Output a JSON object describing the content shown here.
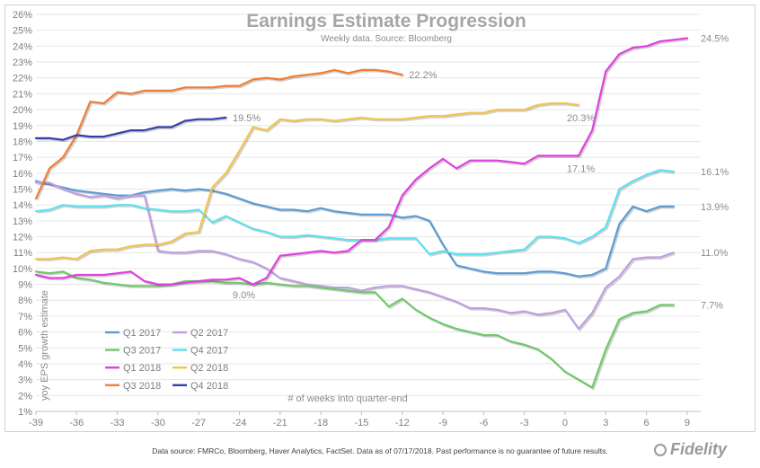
{
  "chart_data": {
    "type": "line",
    "title": "Earnings Estimate Progression",
    "subtitle": "Weekly data.  Source: Bloomberg",
    "xlabel": "# of weeks into quarter-end",
    "ylabel": "yoy EPS growth estimate",
    "xlim": [
      -39,
      10
    ],
    "ylim": [
      1,
      26
    ],
    "xticks": [
      -39,
      -36,
      -33,
      -30,
      -27,
      -24,
      -21,
      -18,
      -15,
      -12,
      -9,
      -6,
      -3,
      0,
      3,
      6,
      9
    ],
    "yticks": [
      1,
      2,
      3,
      4,
      5,
      6,
      7,
      8,
      9,
      10,
      11,
      12,
      13,
      14,
      15,
      16,
      17,
      18,
      19,
      20,
      21,
      22,
      23,
      24,
      25,
      26
    ],
    "grid": true,
    "series": [
      {
        "name": "Q1 2017",
        "color": "#5b9bd5",
        "x": [
          -39,
          -38,
          -37,
          -36,
          -35,
          -34,
          -33,
          -32,
          -31,
          -30,
          -29,
          -28,
          -27,
          -26,
          -25,
          -24,
          -23,
          -22,
          -21,
          -20,
          -19,
          -18,
          -17,
          -16,
          -15,
          -14,
          -13,
          -12,
          -11,
          -10,
          -9,
          -8,
          -7,
          -6,
          -5,
          -4,
          -3,
          -2,
          -1,
          0,
          1,
          2,
          3,
          4,
          5,
          6,
          7,
          8
        ],
        "y": [
          15.5,
          15.3,
          15.1,
          14.9,
          14.8,
          14.7,
          14.6,
          14.6,
          14.8,
          14.9,
          15.0,
          14.9,
          15.0,
          14.9,
          14.7,
          14.4,
          14.1,
          13.9,
          13.7,
          13.7,
          13.6,
          13.8,
          13.6,
          13.5,
          13.4,
          13.4,
          13.4,
          13.2,
          13.3,
          13.0,
          11.5,
          10.2,
          10.0,
          9.8,
          9.7,
          9.7,
          9.7,
          9.8,
          9.8,
          9.7,
          9.5,
          9.6,
          10.0,
          12.8,
          13.9,
          13.6,
          13.9,
          13.9
        ]
      },
      {
        "name": "Q2 2017",
        "color": "#c09fe0",
        "x": [
          -39,
          -38,
          -37,
          -36,
          -35,
          -34,
          -33,
          -32,
          -31,
          -30,
          -29,
          -28,
          -27,
          -26,
          -25,
          -24,
          -23,
          -22,
          -21,
          -20,
          -19,
          -18,
          -17,
          -16,
          -15,
          -14,
          -13,
          -12,
          -11,
          -10,
          -9,
          -8,
          -7,
          -6,
          -5,
          -4,
          -3,
          -2,
          -1,
          0,
          1,
          2,
          3,
          4,
          5,
          6,
          7,
          8
        ],
        "y": [
          15.4,
          15.4,
          15.0,
          14.7,
          14.5,
          14.6,
          14.4,
          14.6,
          14.6,
          11.1,
          11.0,
          11.0,
          11.1,
          11.1,
          10.9,
          10.6,
          10.4,
          10.0,
          9.4,
          9.2,
          9.0,
          8.9,
          8.8,
          8.8,
          8.6,
          8.8,
          8.9,
          8.9,
          8.7,
          8.5,
          8.2,
          7.9,
          7.5,
          7.5,
          7.4,
          7.2,
          7.3,
          7.1,
          7.2,
          7.4,
          6.2,
          7.2,
          8.8,
          9.5,
          10.6,
          10.7,
          10.7,
          11.0
        ]
      },
      {
        "name": "Q3 2017",
        "color": "#70c96b",
        "x": [
          -39,
          -38,
          -37,
          -36,
          -35,
          -34,
          -33,
          -32,
          -31,
          -30,
          -29,
          -28,
          -27,
          -26,
          -25,
          -24,
          -23,
          -22,
          -21,
          -20,
          -19,
          -18,
          -17,
          -16,
          -15,
          -14,
          -13,
          -12,
          -11,
          -10,
          -9,
          -8,
          -7,
          -6,
          -5,
          -4,
          -3,
          -2,
          -1,
          0,
          1,
          2,
          3,
          4,
          5,
          6,
          7,
          8
        ],
        "y": [
          9.8,
          9.7,
          9.8,
          9.4,
          9.3,
          9.1,
          9.0,
          8.9,
          8.9,
          8.9,
          9.0,
          9.2,
          9.2,
          9.2,
          9.1,
          9.1,
          9.0,
          9.1,
          9.0,
          8.9,
          8.9,
          8.8,
          8.7,
          8.6,
          8.5,
          8.5,
          7.6,
          8.1,
          7.4,
          6.9,
          6.5,
          6.2,
          6.0,
          5.8,
          5.8,
          5.4,
          5.2,
          4.9,
          4.3,
          3.5,
          3.0,
          2.5,
          4.9,
          6.8,
          7.2,
          7.3,
          7.7,
          7.7
        ]
      },
      {
        "name": "Q4 2017",
        "color": "#5de0f0",
        "x": [
          -39,
          -38,
          -37,
          -36,
          -35,
          -34,
          -33,
          -32,
          -31,
          -30,
          -29,
          -28,
          -27,
          -26,
          -25,
          -24,
          -23,
          -22,
          -21,
          -20,
          -19,
          -18,
          -17,
          -16,
          -15,
          -14,
          -13,
          -12,
          -11,
          -10,
          -9,
          -8,
          -7,
          -6,
          -5,
          -4,
          -3,
          -2,
          -1,
          0,
          1,
          2,
          3,
          4,
          5,
          6,
          7,
          8
        ],
        "y": [
          13.6,
          13.7,
          14.0,
          13.9,
          13.9,
          13.9,
          14.0,
          14.0,
          13.8,
          13.7,
          13.6,
          13.6,
          13.7,
          12.9,
          13.3,
          12.9,
          12.5,
          12.3,
          12.0,
          12.0,
          12.1,
          12.0,
          11.9,
          11.8,
          11.8,
          11.8,
          11.9,
          11.9,
          11.9,
          10.9,
          11.1,
          10.9,
          10.9,
          10.9,
          11.0,
          11.1,
          11.2,
          12.0,
          12.0,
          11.9,
          11.6,
          12.0,
          12.6,
          15.0,
          15.5,
          15.9,
          16.2,
          16.1
        ]
      },
      {
        "name": "Q1 2018",
        "color": "#e040e0",
        "x": [
          -39,
          -38,
          -37,
          -36,
          -35,
          -34,
          -33,
          -32,
          -31,
          -30,
          -29,
          -28,
          -27,
          -26,
          -25,
          -24,
          -23,
          -22,
          -21,
          -20,
          -19,
          -18,
          -17,
          -16,
          -15,
          -14,
          -13,
          -12,
          -11,
          -10,
          -9,
          -8,
          -7,
          -6,
          -5,
          -4,
          -3,
          -2,
          -1,
          0,
          1,
          2,
          3,
          4,
          5,
          6,
          7,
          8,
          9
        ],
        "y": [
          9.6,
          9.4,
          9.4,
          9.6,
          9.6,
          9.6,
          9.7,
          9.8,
          9.2,
          9.0,
          9.0,
          9.1,
          9.2,
          9.3,
          9.3,
          9.4,
          9.0,
          9.4,
          10.8,
          10.9,
          11.0,
          11.1,
          11.0,
          11.1,
          11.8,
          11.8,
          12.6,
          14.6,
          15.6,
          16.3,
          16.9,
          16.3,
          16.8,
          16.8,
          16.8,
          16.7,
          16.6,
          17.1,
          17.1,
          17.1,
          17.1,
          18.7,
          22.4,
          23.5,
          23.9,
          24.0,
          24.3,
          24.4,
          24.5
        ]
      },
      {
        "name": "Q2 2018",
        "color": "#f2c34e",
        "x": [
          -39,
          -38,
          -37,
          -36,
          -35,
          -34,
          -33,
          -32,
          -31,
          -30,
          -29,
          -28,
          -27,
          -26,
          -25,
          -24,
          -23,
          -22,
          -21,
          -20,
          -19,
          -18,
          -17,
          -16,
          -15,
          -14,
          -13,
          -12,
          -11,
          -10,
          -9,
          -8,
          -7,
          -6,
          -5,
          -4,
          -3,
          -2,
          -1,
          0,
          1
        ],
        "y": [
          10.6,
          10.6,
          10.7,
          10.6,
          11.1,
          11.2,
          11.2,
          11.4,
          11.5,
          11.5,
          11.7,
          12.2,
          12.3,
          15.1,
          16.0,
          17.4,
          18.9,
          18.7,
          19.4,
          19.3,
          19.4,
          19.4,
          19.3,
          19.4,
          19.5,
          19.4,
          19.4,
          19.4,
          19.5,
          19.6,
          19.6,
          19.7,
          19.8,
          19.8,
          20.0,
          20.0,
          20.0,
          20.3,
          20.4,
          20.4,
          20.3
        ]
      },
      {
        "name": "Q3 2018",
        "color": "#ef7d38",
        "x": [
          -39,
          -38,
          -37,
          -36,
          -35,
          -34,
          -33,
          -32,
          -31,
          -30,
          -29,
          -28,
          -27,
          -26,
          -25,
          -24,
          -23,
          -22,
          -21,
          -20,
          -19,
          -18,
          -17,
          -16,
          -15,
          -14,
          -13,
          -12
        ],
        "y": [
          14.4,
          16.3,
          17.0,
          18.4,
          20.5,
          20.4,
          21.1,
          21.0,
          21.2,
          21.2,
          21.2,
          21.4,
          21.4,
          21.4,
          21.5,
          21.5,
          21.9,
          22.0,
          21.9,
          22.1,
          22.2,
          22.3,
          22.5,
          22.3,
          22.5,
          22.5,
          22.4,
          22.2
        ]
      },
      {
        "name": "Q4 2018",
        "color": "#3340a8",
        "x": [
          -39,
          -38,
          -37,
          -36,
          -35,
          -34,
          -33,
          -32,
          -31,
          -30,
          -29,
          -28,
          -27,
          -26,
          -25
        ],
        "y": [
          18.2,
          18.2,
          18.1,
          18.4,
          18.3,
          18.3,
          18.5,
          18.7,
          18.7,
          18.9,
          18.9,
          19.3,
          19.4,
          19.4,
          19.5
        ]
      }
    ],
    "annotations": [
      {
        "text": "22.2%",
        "x": -11.5,
        "y": 22.2
      },
      {
        "text": "19.5%",
        "x": -24.5,
        "y": 19.5
      },
      {
        "text": "20.3%",
        "x": 0,
        "y": 19.5
      },
      {
        "text": "24.5%",
        "x": 10.0,
        "y": 24.5
      },
      {
        "text": "17.1%",
        "x": 0,
        "y": 16.3
      },
      {
        "text": "16.1%",
        "x": 10.0,
        "y": 16.1
      },
      {
        "text": "13.9%",
        "x": 10.0,
        "y": 13.9
      },
      {
        "text": "11.0%",
        "x": 10.0,
        "y": 11.0
      },
      {
        "text": "9.0%",
        "x": -24.5,
        "y": 8.35
      },
      {
        "text": "7.7%",
        "x": 10.0,
        "y": 7.7
      }
    ],
    "legend": [
      {
        "name": "Q1 2017",
        "color": "#5b9bd5"
      },
      {
        "name": "Q2 2017",
        "color": "#c09fe0"
      },
      {
        "name": "Q3 2017",
        "color": "#70c96b"
      },
      {
        "name": "Q4 2017",
        "color": "#5de0f0"
      },
      {
        "name": "Q1 2018",
        "color": "#e040e0"
      },
      {
        "name": "Q2 2018",
        "color": "#f2c34e"
      },
      {
        "name": "Q3 2018",
        "color": "#ef7d38"
      },
      {
        "name": "Q4 2018",
        "color": "#3340a8"
      }
    ],
    "legend_position": "bottom-left"
  },
  "footer": {
    "note": "Data source: FMRCo, Bloomberg, Haver Analytics, FactSet. Data as of 07/17/2018. Past performance is no guarantee of future results.",
    "logo": "Fidelity"
  }
}
